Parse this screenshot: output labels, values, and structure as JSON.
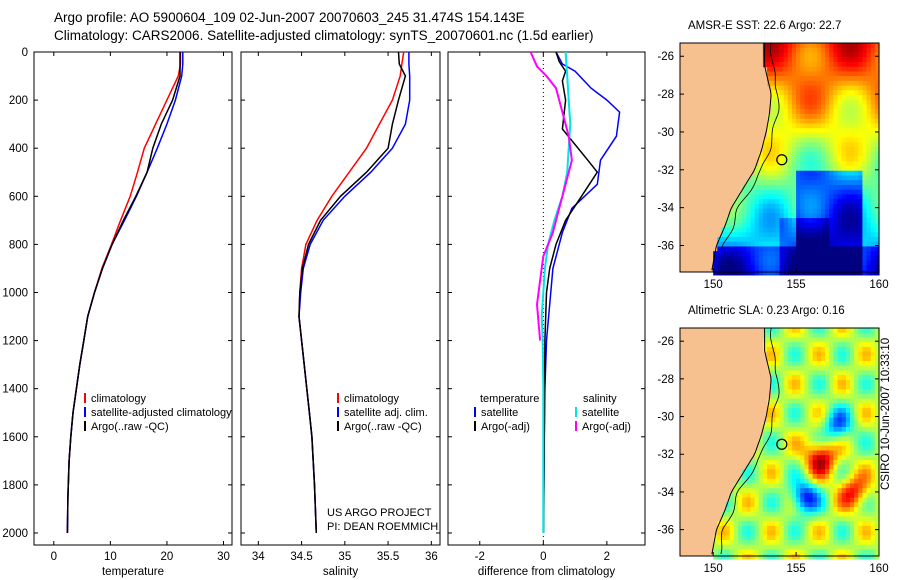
{
  "header": {
    "line1": "Argo profile: AO 5900604_109 02-Jun-2007 20070603_245 31.474S 154.143E",
    "line2": "Climatology: CARS2006. Satellite-adjusted climatology: synTS_20070601.nc (1.5d earlier)"
  },
  "credit": "CSIRO  10-Jun-2007 10:33:10",
  "colors": {
    "climatology": "#ff0000",
    "satellite": "#0000ff",
    "argo": "#000000",
    "argo_adj": "#ff00ff",
    "satellite_sal": "#00e5e5",
    "land": "#f7c08f"
  },
  "chart_data": [
    {
      "type": "line",
      "xlabel": "temperature",
      "ylim": [
        2050,
        0
      ],
      "xlim": [
        -3.5,
        31.5
      ],
      "xticks": [
        0,
        10,
        20,
        30
      ],
      "yticks": [
        0,
        200,
        400,
        600,
        800,
        1000,
        1200,
        1400,
        1600,
        1800,
        2000
      ],
      "legend": {
        "placement": "lower-right",
        "entries": [
          "climatology",
          "satellite-adjusted climatology",
          "Argo(..raw -QC)"
        ]
      },
      "series": [
        {
          "name": "climatology",
          "color": "#ff0000",
          "x": [
            22.4,
            22.4,
            22.0,
            20.0,
            18.0,
            16.0,
            14.8,
            13.5,
            11.8,
            10.2,
            8.5,
            7.2,
            6.0,
            5.3,
            4.6,
            4.0,
            3.4,
            3.0,
            2.7,
            2.5,
            2.4
          ],
          "y": [
            0,
            50,
            100,
            200,
            300,
            400,
            500,
            600,
            700,
            800,
            900,
            1000,
            1100,
            1200,
            1300,
            1400,
            1500,
            1600,
            1700,
            1850,
            2000
          ]
        },
        {
          "name": "satellite-adjusted climatology",
          "color": "#0000ff",
          "x": [
            22.8,
            22.8,
            22.6,
            21.5,
            20.0,
            18.3,
            16.5,
            14.6,
            12.5,
            10.3,
            8.6,
            7.2,
            6.0,
            5.3,
            4.6,
            4.0,
            3.4,
            3.0,
            2.7,
            2.5,
            2.4
          ],
          "y": [
            0,
            50,
            100,
            200,
            300,
            400,
            500,
            600,
            700,
            800,
            900,
            1000,
            1100,
            1200,
            1300,
            1400,
            1500,
            1600,
            1700,
            1850,
            2000
          ]
        },
        {
          "name": "Argo(..raw -QC)",
          "color": "#000000",
          "x": [
            22.3,
            22.3,
            22.3,
            21.0,
            19.0,
            17.5,
            16.5,
            14.5,
            12.3,
            10.3,
            8.6,
            7.2,
            6.0,
            5.3,
            4.6,
            4.0,
            3.4,
            3.0,
            2.7,
            2.5,
            2.4
          ],
          "y": [
            0,
            50,
            100,
            200,
            300,
            400,
            500,
            600,
            700,
            800,
            900,
            1000,
            1100,
            1200,
            1300,
            1400,
            1500,
            1600,
            1700,
            1850,
            2000
          ]
        }
      ]
    },
    {
      "type": "line",
      "xlabel": "salinity",
      "ylim": [
        2050,
        0
      ],
      "xlim": [
        33.8,
        36.1
      ],
      "xticks": [
        34,
        34.5,
        35,
        35.5,
        36
      ],
      "legend": {
        "placement": "lower-right",
        "entries": [
          "climatology",
          "satellite adj. clim.",
          "Argo(..raw -QC)"
        ]
      },
      "annotation": [
        "US ARGO PROJECT",
        "PI: DEAN ROEMMICH"
      ],
      "series": [
        {
          "name": "climatology",
          "color": "#ff0000",
          "x": [
            35.68,
            35.66,
            35.64,
            35.55,
            35.4,
            35.25,
            35.05,
            34.85,
            34.68,
            34.55,
            34.5,
            34.48,
            34.47,
            34.5,
            34.53,
            34.56,
            34.59,
            34.62,
            34.65,
            34.67
          ],
          "y": [
            0,
            50,
            100,
            200,
            300,
            400,
            500,
            600,
            700,
            800,
            900,
            1000,
            1100,
            1200,
            1300,
            1400,
            1500,
            1600,
            1800,
            2000
          ]
        },
        {
          "name": "satellite adj. clim.",
          "color": "#0000ff",
          "x": [
            35.74,
            35.74,
            35.75,
            35.75,
            35.7,
            35.55,
            35.3,
            35.0,
            34.75,
            34.6,
            34.52,
            34.49,
            34.47,
            34.5,
            34.53,
            34.56,
            34.59,
            34.62,
            34.65,
            34.67
          ],
          "y": [
            0,
            50,
            100,
            200,
            300,
            400,
            500,
            600,
            700,
            800,
            900,
            1000,
            1100,
            1200,
            1300,
            1400,
            1500,
            1600,
            1800,
            2000
          ]
        },
        {
          "name": "Argo(..raw -QC)",
          "color": "#000000",
          "x": [
            35.62,
            35.63,
            35.7,
            35.62,
            35.55,
            35.5,
            35.25,
            34.95,
            34.72,
            34.58,
            34.51,
            34.48,
            34.47,
            34.5,
            34.53,
            34.56,
            34.59,
            34.62,
            34.65,
            34.67
          ],
          "y": [
            0,
            50,
            100,
            200,
            300,
            400,
            500,
            600,
            700,
            800,
            900,
            1000,
            1100,
            1200,
            1300,
            1400,
            1500,
            1600,
            1800,
            2000
          ]
        }
      ]
    },
    {
      "type": "line",
      "xlabel": "difference from climatology",
      "ylim": [
        2050,
        0
      ],
      "xlim": [
        -3.0,
        3.2
      ],
      "xticks": [
        -2,
        0,
        2
      ],
      "legend": {
        "placement": "lower-center",
        "entries": [
          "temperature",
          "satellite",
          "Argo(-adj)",
          "salinity",
          "satellite",
          "Argo(-adj)"
        ]
      },
      "series": [
        {
          "name": "temperature satellite",
          "color": "#0000ff",
          "x": [
            0.4,
            0.6,
            1.0,
            1.5,
            2.0,
            2.4,
            2.3,
            1.8,
            1.7,
            0.9,
            0.6,
            0.3,
            0.2,
            0.1,
            0.05,
            0.03,
            0.02,
            0.01,
            0.0
          ],
          "y": [
            0,
            50,
            80,
            150,
            200,
            250,
            350,
            450,
            550,
            650,
            750,
            900,
            1050,
            1200,
            1400,
            1600,
            1750,
            1900,
            2000
          ]
        },
        {
          "name": "temperature Argo(-adj)",
          "color": "#000000",
          "x": [
            0.4,
            0.5,
            0.7,
            0.6,
            0.7,
            0.6,
            1.4,
            1.7,
            1.2,
            0.7,
            0.4,
            0.2,
            0.1,
            0.05,
            0.03,
            0.01
          ],
          "y": [
            0,
            40,
            80,
            120,
            200,
            320,
            450,
            500,
            600,
            700,
            800,
            900,
            1000,
            1200,
            1600,
            2000
          ]
        },
        {
          "name": "salinity satellite",
          "color": "#00e5e5",
          "x": [
            0.7,
            0.75,
            0.8,
            0.85,
            0.8,
            0.75,
            0.6,
            0.35,
            0.15,
            0.05,
            0.0,
            -0.05,
            -0.02,
            0.0,
            0.0,
            0.0
          ],
          "y": [
            0,
            100,
            200,
            300,
            400,
            500,
            600,
            700,
            800,
            900,
            1000,
            1100,
            1200,
            1400,
            1700,
            2000
          ]
        },
        {
          "name": "salinity Argo(-adj)",
          "color": "#ff00ff",
          "x": [
            -0.4,
            -0.3,
            -0.2,
            0.1,
            0.4,
            0.6,
            0.8,
            0.9,
            0.7,
            0.5,
            0.3,
            0.0,
            -0.1,
            -0.2,
            -0.1
          ],
          "y": [
            0,
            30,
            60,
            100,
            150,
            250,
            350,
            450,
            550,
            650,
            750,
            850,
            950,
            1050,
            1200
          ]
        }
      ]
    }
  ],
  "maps": [
    {
      "title": "AMSR-E SST: 22.6  Argo: 22.7",
      "yticks": [
        -26,
        -28,
        -30,
        -32,
        -34,
        -36
      ],
      "xticks": [
        150,
        155,
        160
      ],
      "marker": {
        "lon": 154.14,
        "lat": -31.47
      }
    },
    {
      "title": "Altimetric SLA: 0.23  Argo: 0.16",
      "yticks": [
        -26,
        -28,
        -30,
        -32,
        -34,
        -36
      ],
      "xticks": [
        150,
        155,
        160
      ],
      "marker": {
        "lon": 154.14,
        "lat": -31.47
      }
    }
  ]
}
